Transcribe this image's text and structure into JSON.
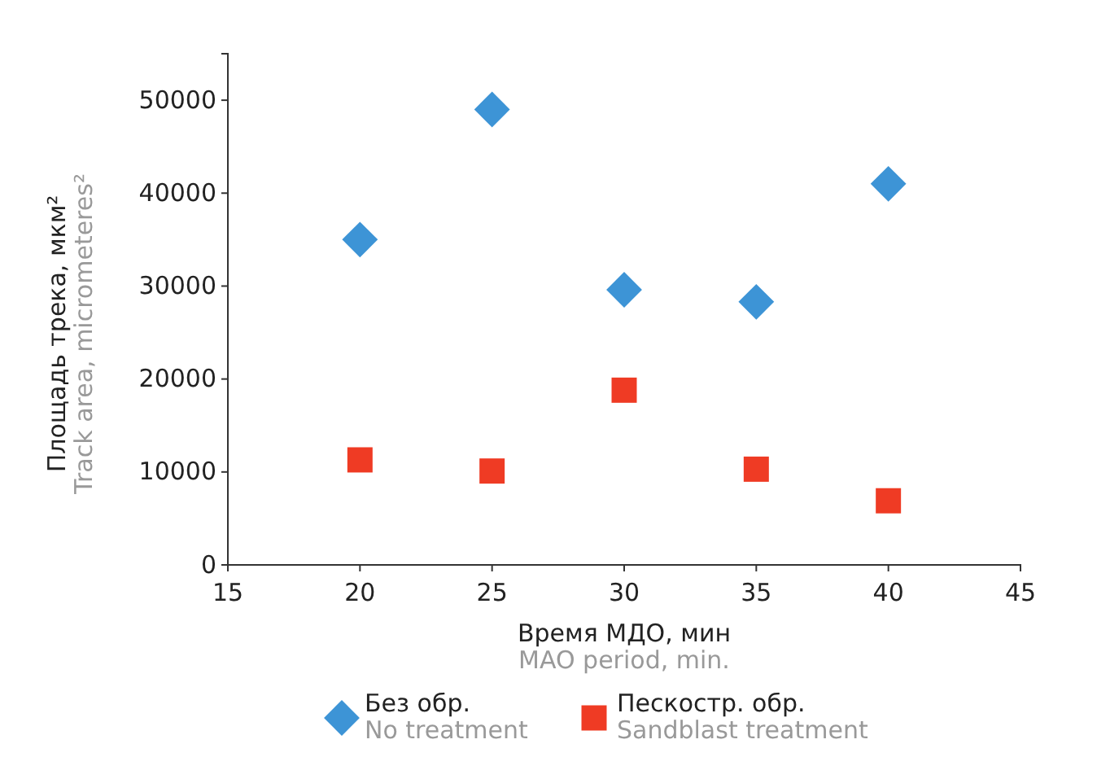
{
  "chart_data": {
    "type": "scatter",
    "xlabel": "Время МДО, мин\nMAO period, min.",
    "ylabel": "Площадь трека, мкм²\nTrack area, micrometeres²",
    "xlim": [
      15,
      45
    ],
    "xticks": [
      15,
      20,
      25,
      30,
      35,
      40,
      45
    ],
    "ylim": [
      0,
      55000
    ],
    "yticks": [
      0,
      10000,
      20000,
      30000,
      40000,
      50000
    ],
    "grid": false,
    "legend": "bottom",
    "series": [
      {
        "name": "Без обр.\nNo treatment",
        "color": "#3d94d6",
        "marker": "diamond",
        "x": [
          20,
          25,
          30,
          35,
          40
        ],
        "values": [
          35000,
          49000,
          29600,
          28300,
          41000
        ]
      },
      {
        "name": "Пескостр. обр.\nSandblast treatment",
        "color": "#ef3b24",
        "marker": "square",
        "x": [
          20,
          25,
          30,
          35,
          40
        ],
        "values": [
          11300,
          10100,
          18800,
          10300,
          6900
        ]
      }
    ]
  }
}
